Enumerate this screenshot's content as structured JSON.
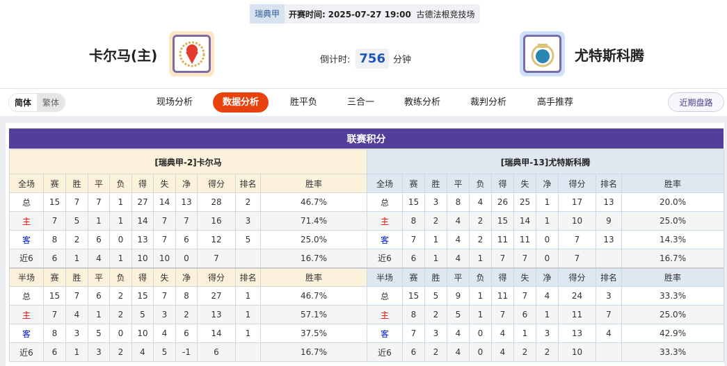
{
  "match": {
    "league": "瑞典甲",
    "time_label": "开赛时间:",
    "time": "2025-07-27 19:00",
    "venue": "古德法根竞技场"
  },
  "home": {
    "name": "卡尔马(主)",
    "logo_bg": "#fde6c4"
  },
  "away": {
    "name": "尤特斯科腾",
    "logo_bg": "#cfe0fb"
  },
  "countdown": {
    "label": "倒计时:",
    "value": "756",
    "unit": "分钟"
  },
  "lang": {
    "simplified": "简体",
    "traditional": "繁体"
  },
  "tabs": [
    {
      "label": "现场分析"
    },
    {
      "label": "数据分析",
      "active": true
    },
    {
      "label": "胜平负"
    },
    {
      "label": "三合一"
    },
    {
      "label": "教练分析"
    },
    {
      "label": "裁判分析"
    },
    {
      "label": "高手推荐"
    }
  ],
  "recent_button": "近期盘路",
  "standings": {
    "title": "联赛积分",
    "columns_full": [
      "全场",
      "赛",
      "胜",
      "平",
      "负",
      "得",
      "失",
      "净",
      "得分",
      "排名",
      "胜率"
    ],
    "columns_half": [
      "半场",
      "赛",
      "胜",
      "平",
      "负",
      "得",
      "失",
      "净",
      "得分",
      "排名",
      "胜率"
    ],
    "home": {
      "team": "[瑞典甲-2]卡尔马",
      "full": [
        [
          "总",
          "15",
          "7",
          "7",
          "1",
          "27",
          "14",
          "13",
          "28",
          "2",
          "46.7%"
        ],
        [
          "主",
          "7",
          "5",
          "1",
          "1",
          "14",
          "7",
          "7",
          "16",
          "3",
          "71.4%"
        ],
        [
          "客",
          "8",
          "2",
          "6",
          "0",
          "13",
          "7",
          "6",
          "12",
          "5",
          "25.0%"
        ],
        [
          "近6",
          "6",
          "1",
          "4",
          "1",
          "10",
          "10",
          "0",
          "7",
          "",
          "16.7%"
        ]
      ],
      "half": [
        [
          "总",
          "15",
          "7",
          "6",
          "2",
          "15",
          "7",
          "8",
          "27",
          "1",
          "46.7%"
        ],
        [
          "主",
          "7",
          "4",
          "1",
          "2",
          "5",
          "3",
          "2",
          "13",
          "1",
          "57.1%"
        ],
        [
          "客",
          "8",
          "3",
          "5",
          "0",
          "10",
          "4",
          "6",
          "14",
          "1",
          "37.5%"
        ],
        [
          "近6",
          "6",
          "1",
          "3",
          "2",
          "4",
          "5",
          "-1",
          "6",
          "",
          "16.7%"
        ]
      ]
    },
    "away": {
      "team": "[瑞典甲-13]尤特斯科腾",
      "full": [
        [
          "总",
          "15",
          "3",
          "8",
          "4",
          "26",
          "25",
          "1",
          "17",
          "13",
          "20.0%"
        ],
        [
          "主",
          "8",
          "2",
          "4",
          "2",
          "15",
          "14",
          "1",
          "10",
          "9",
          "25.0%"
        ],
        [
          "客",
          "7",
          "1",
          "4",
          "2",
          "11",
          "11",
          "0",
          "7",
          "13",
          "14.3%"
        ],
        [
          "近6",
          "6",
          "1",
          "4",
          "1",
          "7",
          "7",
          "0",
          "7",
          "",
          "16.7%"
        ]
      ],
      "half": [
        [
          "总",
          "15",
          "5",
          "9",
          "1",
          "11",
          "7",
          "4",
          "24",
          "3",
          "33.3%"
        ],
        [
          "主",
          "8",
          "2",
          "5",
          "1",
          "7",
          "6",
          "1",
          "11",
          "7",
          "25.0%"
        ],
        [
          "客",
          "7",
          "3",
          "4",
          "0",
          "4",
          "1",
          "3",
          "13",
          "4",
          "42.9%"
        ],
        [
          "近6",
          "6",
          "2",
          "4",
          "0",
          "4",
          "2",
          "2",
          "10",
          "",
          "33.3%"
        ]
      ]
    }
  }
}
